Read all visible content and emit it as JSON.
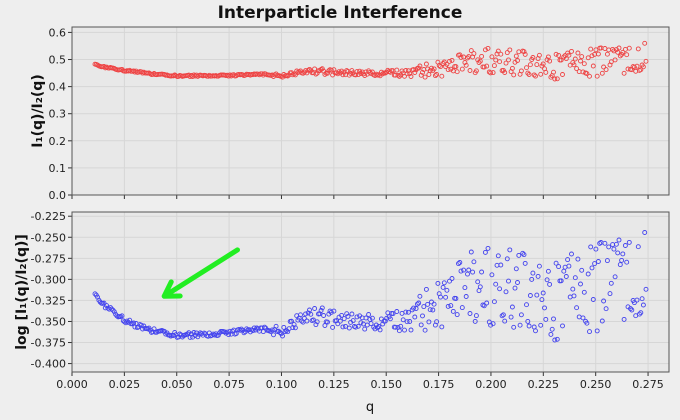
{
  "chart_data": {
    "type": "scatter",
    "title": "Interparticle Interference",
    "xlabel": "q",
    "xlim": [
      0.0,
      0.285
    ],
    "xticks": [
      "0.000",
      "0.025",
      "0.050",
      "0.075",
      "0.100",
      "0.125",
      "0.150",
      "0.175",
      "0.200",
      "0.225",
      "0.250",
      "0.275"
    ],
    "grid": true,
    "panels": [
      {
        "ylabel": "I₁(q)/I₂(q)",
        "ylim": [
          0.0,
          0.62
        ],
        "yticks": [
          "0.0",
          "0.1",
          "0.2",
          "0.3",
          "0.4",
          "0.5",
          "0.6"
        ],
        "series": [
          {
            "color": "#ee4444",
            "marker": "open-circle",
            "x_range": [
              0.011,
              0.274
            ],
            "profile_x": [
              0.011,
              0.02,
              0.03,
              0.04,
              0.05,
              0.06,
              0.07,
              0.08,
              0.09,
              0.1,
              0.11,
              0.12,
              0.13,
              0.14,
              0.15,
              0.16,
              0.17,
              0.18,
              0.19,
              0.2,
              0.21,
              0.22,
              0.23,
              0.24,
              0.25,
              0.26,
              0.27,
              0.274
            ],
            "profile_y": [
              0.48,
              0.465,
              0.455,
              0.445,
              0.44,
              0.44,
              0.44,
              0.442,
              0.445,
              0.44,
              0.455,
              0.455,
              0.45,
              0.448,
              0.45,
              0.448,
              0.46,
              0.475,
              0.49,
              0.5,
              0.49,
              0.48,
              0.47,
              0.49,
              0.49,
              0.49,
              0.5,
              0.51
            ],
            "scatter_spread": [
              0.0,
              0.0,
              0.0,
              0.0,
              0.0,
              0.0,
              0.0,
              0.0,
              0.0,
              0.005,
              0.01,
              0.01,
              0.008,
              0.008,
              0.01,
              0.012,
              0.03,
              0.04,
              0.045,
              0.05,
              0.05,
              0.05,
              0.05,
              0.05,
              0.055,
              0.055,
              0.055,
              0.055
            ]
          }
        ]
      },
      {
        "ylabel": "log [I₁(q)/I₂(q)]",
        "ylim": [
          -0.41,
          -0.22
        ],
        "yticks": [
          "-0.225",
          "-0.250",
          "-0.275",
          "-0.300",
          "-0.325",
          "-0.350",
          "-0.375",
          "-0.400"
        ],
        "series": [
          {
            "color": "#4444ee",
            "marker": "open-circle",
            "x_range": [
              0.011,
              0.274
            ],
            "profile_x": [
              0.011,
              0.02,
              0.03,
              0.04,
              0.05,
              0.06,
              0.07,
              0.08,
              0.09,
              0.1,
              0.11,
              0.12,
              0.13,
              0.14,
              0.15,
              0.16,
              0.17,
              0.18,
              0.19,
              0.2,
              0.21,
              0.22,
              0.23,
              0.24,
              0.25,
              0.26,
              0.27,
              0.274
            ],
            "profile_y": [
              -0.32,
              -0.34,
              -0.355,
              -0.362,
              -0.366,
              -0.366,
              -0.365,
              -0.362,
              -0.36,
              -0.362,
              -0.345,
              -0.345,
              -0.35,
              -0.352,
              -0.35,
              -0.35,
              -0.335,
              -0.32,
              -0.31,
              -0.305,
              -0.31,
              -0.32,
              -0.33,
              -0.31,
              -0.31,
              -0.305,
              -0.3,
              -0.295
            ],
            "scatter_spread": [
              0.0,
              0.0,
              0.0,
              0.0,
              0.0,
              0.0,
              0.0,
              0.0,
              0.0,
              0.005,
              0.01,
              0.01,
              0.008,
              0.008,
              0.01,
              0.012,
              0.03,
              0.04,
              0.045,
              0.05,
              0.05,
              0.05,
              0.05,
              0.05,
              0.055,
              0.055,
              0.055,
              0.055
            ]
          }
        ],
        "annotation": {
          "type": "arrow",
          "color": "#22ee22",
          "from": [
            0.079,
            -0.265
          ],
          "to": [
            0.044,
            -0.32
          ]
        }
      }
    ]
  }
}
